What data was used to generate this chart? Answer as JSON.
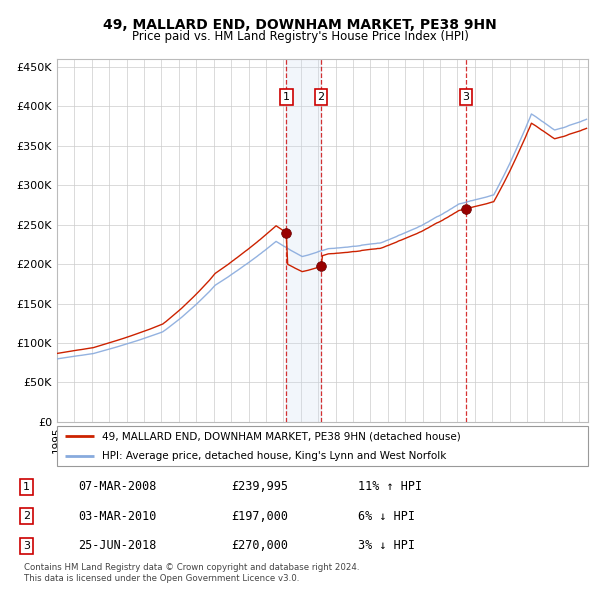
{
  "title": "49, MALLARD END, DOWNHAM MARKET, PE38 9HN",
  "subtitle": "Price paid vs. HM Land Registry's House Price Index (HPI)",
  "ylim": [
    0,
    460000
  ],
  "yticks": [
    0,
    50000,
    100000,
    150000,
    200000,
    250000,
    300000,
    350000,
    400000,
    450000
  ],
  "xlim_start": 1995.0,
  "xlim_end": 2025.5,
  "sales": [
    {
      "date_num": 2008.18,
      "price": 239995,
      "label": "1"
    },
    {
      "date_num": 2010.17,
      "price": 197000,
      "label": "2"
    },
    {
      "date_num": 2018.48,
      "price": 270000,
      "label": "3"
    }
  ],
  "sale_marker_color": "#990000",
  "sale_box_color": "#cc0000",
  "hpi_line_color": "#88aadd",
  "price_line_color": "#cc2200",
  "vline_color": "#cc0000",
  "vband_color": "#ccddf0",
  "legend_entries": [
    "49, MALLARD END, DOWNHAM MARKET, PE38 9HN (detached house)",
    "HPI: Average price, detached house, King's Lynn and West Norfolk"
  ],
  "table_rows": [
    {
      "num": "1",
      "date": "07-MAR-2008",
      "price": "£239,995",
      "hpi": "11% ↑ HPI"
    },
    {
      "num": "2",
      "date": "03-MAR-2010",
      "price": "£197,000",
      "hpi": "6% ↓ HPI"
    },
    {
      "num": "3",
      "date": "25-JUN-2018",
      "price": "£270,000",
      "hpi": "3% ↓ HPI"
    }
  ],
  "footer": "Contains HM Land Registry data © Crown copyright and database right 2024.\nThis data is licensed under the Open Government Licence v3.0.",
  "background_color": "#ffffff",
  "grid_color": "#cccccc"
}
